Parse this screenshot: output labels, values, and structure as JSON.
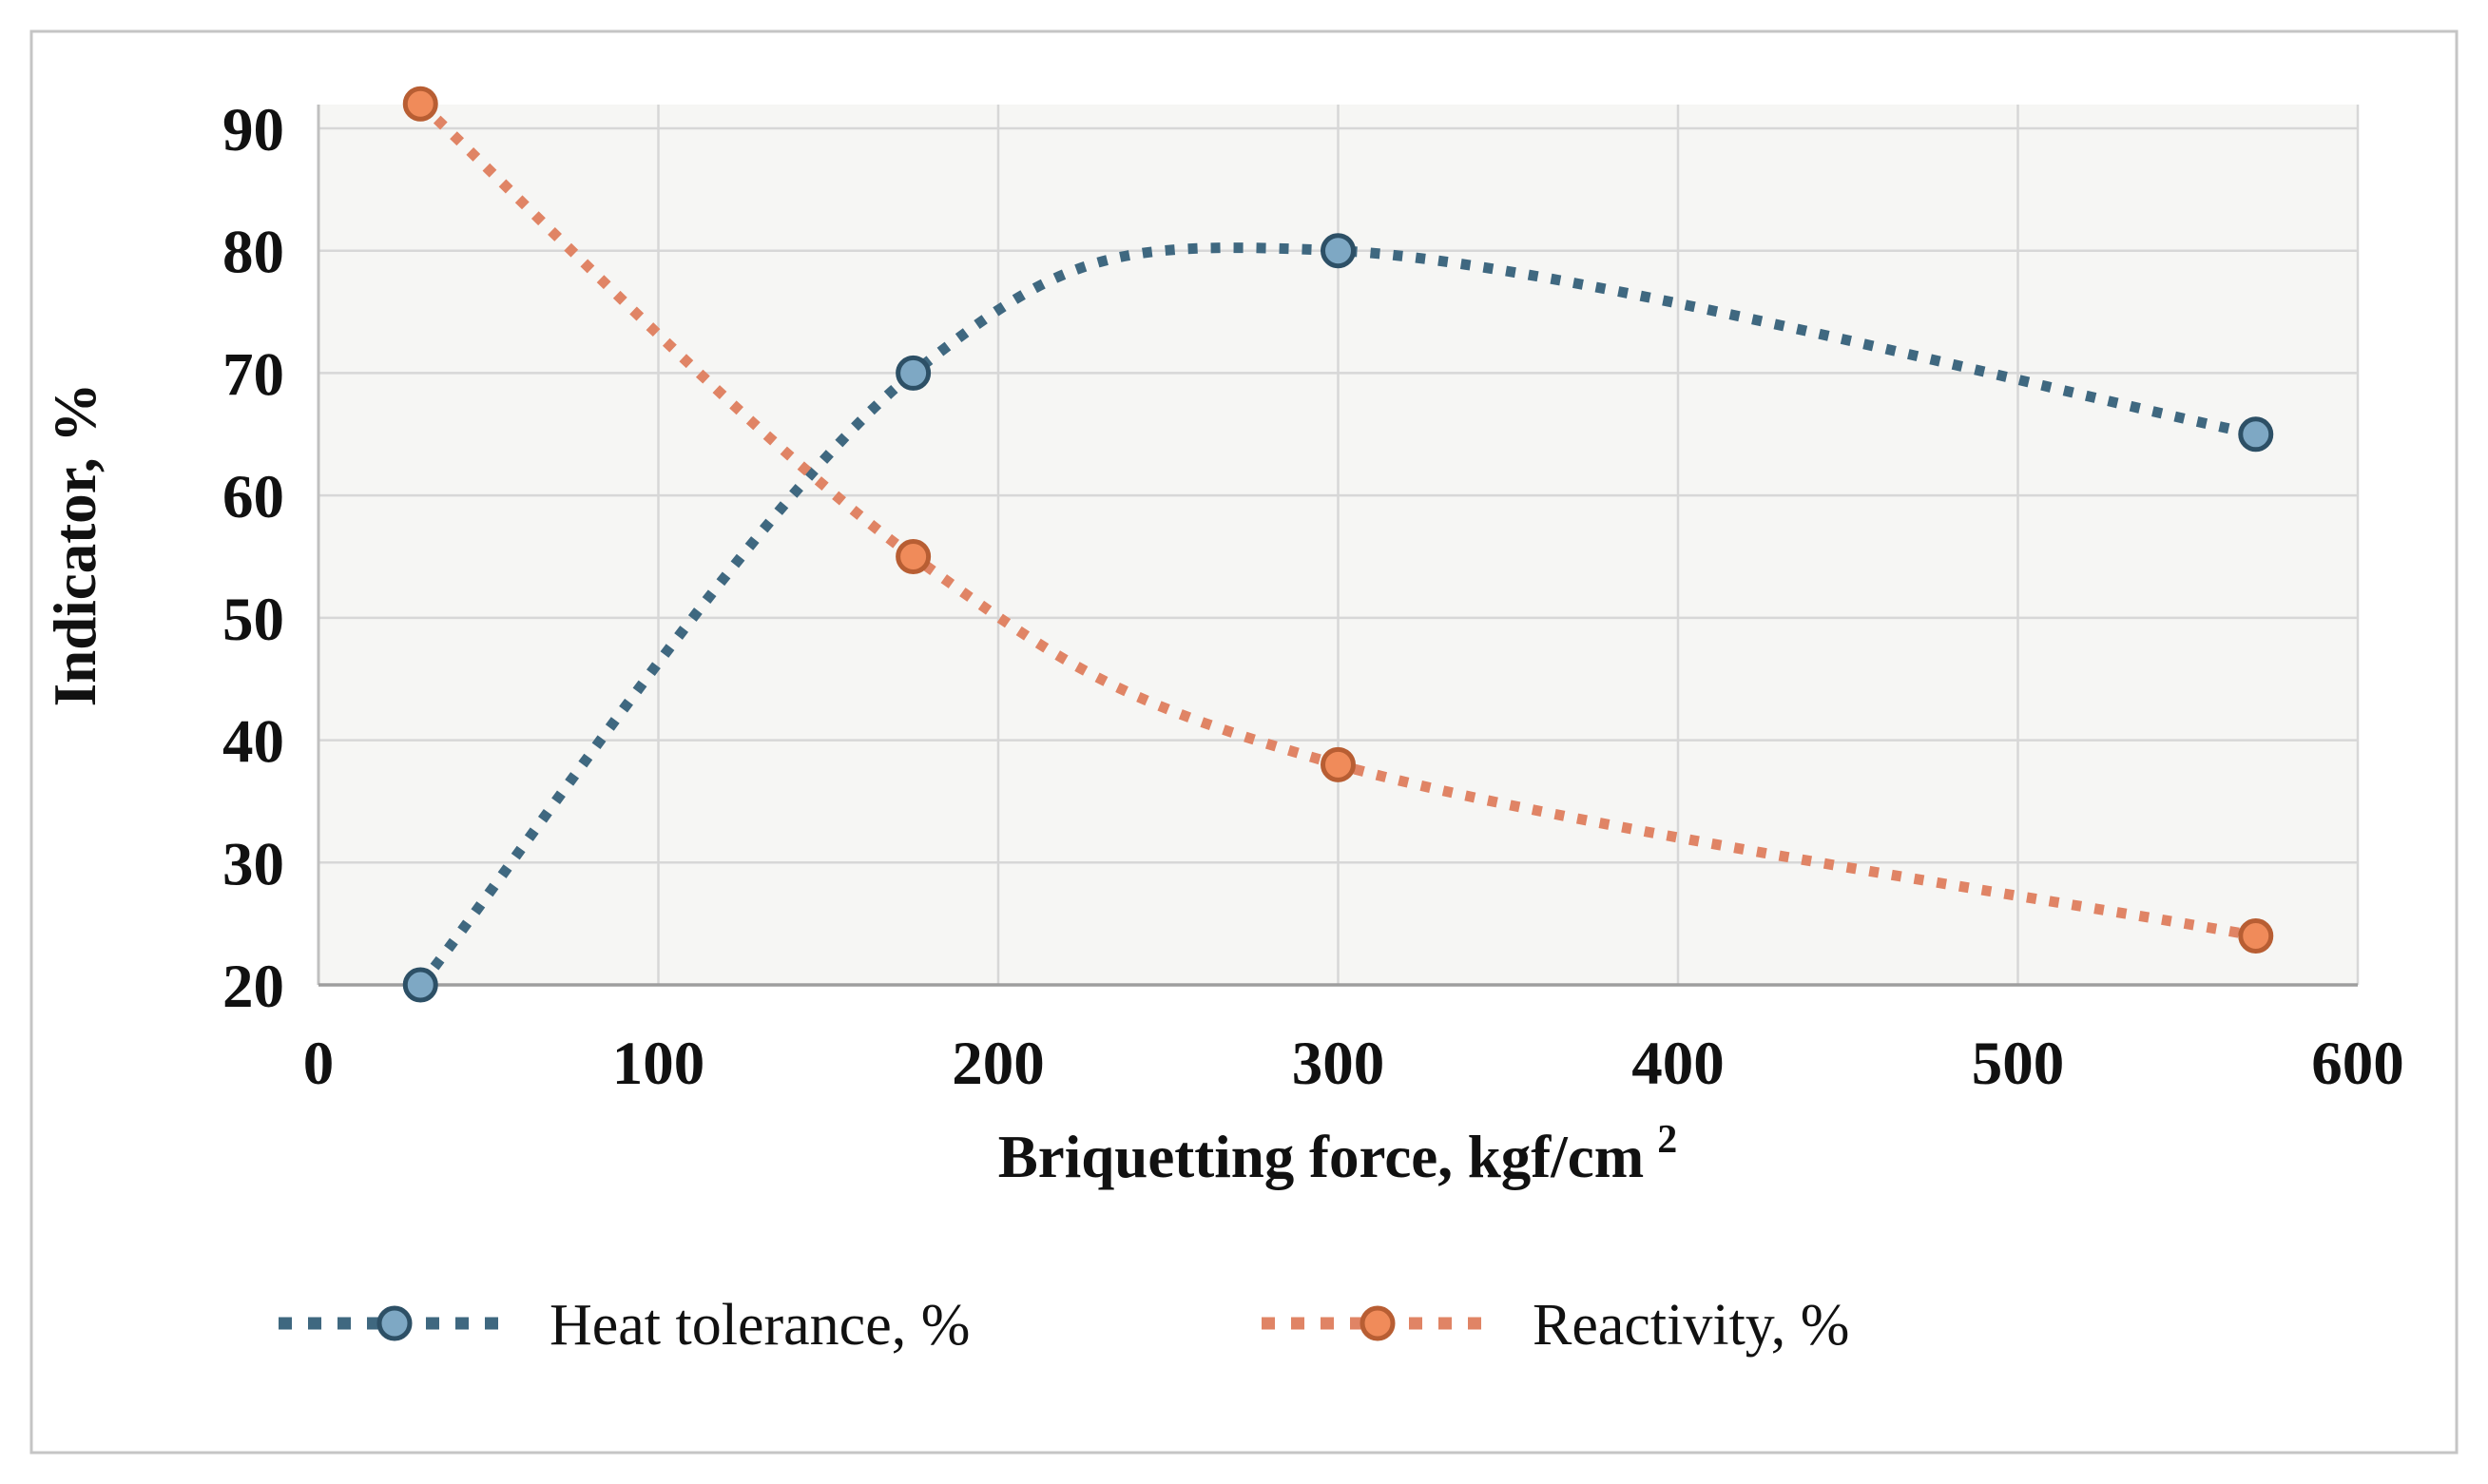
{
  "figure": {
    "background_color": "#ffffff",
    "frame_color": "#c5c5c5"
  },
  "chart_data": {
    "type": "line",
    "title": "",
    "xlabel": "Briquetting force, kgf/cm",
    "xlabel_superscript": "2",
    "ylabel": "Indicator, %",
    "xlim": [
      0,
      600
    ],
    "ylim": [
      20,
      90
    ],
    "x_ticks": [
      0,
      100,
      200,
      300,
      400,
      500,
      600
    ],
    "y_ticks": [
      20,
      30,
      40,
      50,
      60,
      70,
      80,
      90
    ],
    "grid": true,
    "legend_position": "bottom-center",
    "line_style": "dotted-smooth",
    "plot_bg_color": "#f6f6f4",
    "gridline_color": "#d7d7d7",
    "y_axis_line_color": "#c0c0c0",
    "x_axis_line_color": "#9e9e9e",
    "series": [
      {
        "name": "Heat tolerance, %",
        "x": [
          30,
          175,
          300,
          570
        ],
        "values": [
          20,
          70,
          80,
          65
        ],
        "line_color": "#3f6880",
        "marker_fill": "#7ea8c4",
        "marker_stroke": "#2d5066"
      },
      {
        "name": "Reactivity, %",
        "x": [
          30,
          175,
          300,
          570
        ],
        "values": [
          92,
          55,
          38,
          24
        ],
        "line_color": "#e08465",
        "marker_fill": "#f08b5a",
        "marker_stroke": "#b85e33"
      }
    ]
  }
}
